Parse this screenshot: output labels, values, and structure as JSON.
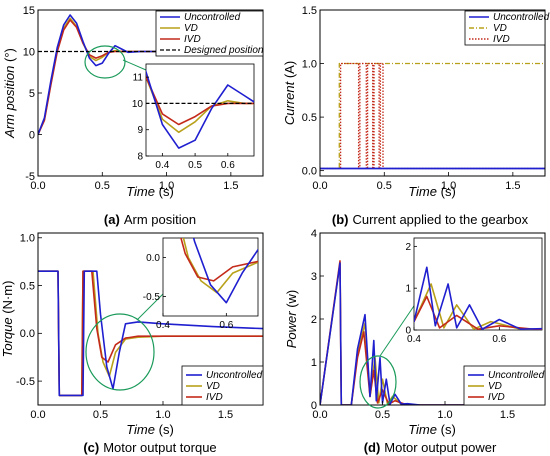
{
  "colors": {
    "uncontrolled": "#1f1fd0",
    "vd": "#b8a11a",
    "ivd": "#c42a1a",
    "designed": "#000000",
    "highlight": "#1a9a5a"
  },
  "captions": [
    {
      "label": "(a)",
      "text": "Arm position"
    },
    {
      "label": "(b)",
      "text": "Current applied to the gearbox"
    },
    {
      "label": "(c)",
      "text": "Motor output torque"
    },
    {
      "label": "(d)",
      "text": "Motor output power"
    }
  ],
  "chart_data": [
    {
      "type": "line",
      "xlabel": "Time (s)",
      "ylabel": "Arm position (°)",
      "xlim": [
        0,
        1.75
      ],
      "ylim": [
        -5,
        15
      ],
      "xticks": [
        "0.0",
        "0.5",
        "1.0",
        "1.5"
      ],
      "yticks": [
        "-5",
        "0",
        "5",
        "10",
        "15"
      ],
      "legend": "top-right",
      "series": [
        {
          "name": "Uncontrolled",
          "x": [
            0,
            0.05,
            0.1,
            0.15,
            0.2,
            0.25,
            0.3,
            0.35,
            0.4,
            0.45,
            0.5,
            0.55,
            0.6,
            0.65,
            0.7,
            0.8,
            1.0,
            1.5,
            1.75
          ],
          "y": [
            0,
            2,
            6.5,
            10.5,
            13.2,
            14.4,
            13.4,
            11.2,
            9.2,
            8.3,
            8.6,
            9.8,
            10.7,
            10.3,
            9.9,
            10.0,
            10.0,
            10.0,
            10.0
          ]
        },
        {
          "name": "VD",
          "x": [
            0,
            0.05,
            0.1,
            0.15,
            0.2,
            0.25,
            0.3,
            0.35,
            0.4,
            0.45,
            0.5,
            0.55,
            0.6,
            0.65,
            0.8,
            1.0,
            1.5,
            1.75
          ],
          "y": [
            0,
            1.8,
            6.2,
            10.2,
            12.8,
            14.0,
            13.0,
            11.0,
            9.4,
            8.9,
            9.3,
            9.9,
            10.1,
            10.0,
            10.0,
            10.0,
            10.0,
            10.0
          ]
        },
        {
          "name": "IVD",
          "x": [
            0,
            0.05,
            0.1,
            0.15,
            0.2,
            0.25,
            0.3,
            0.35,
            0.4,
            0.45,
            0.5,
            0.55,
            0.6,
            0.65,
            0.8,
            1.0,
            1.5,
            1.75
          ],
          "y": [
            0,
            1.7,
            6.0,
            10.0,
            12.6,
            13.8,
            12.9,
            11.0,
            9.6,
            9.2,
            9.5,
            9.9,
            10.0,
            10.0,
            10.0,
            10.0,
            10.0,
            10.0
          ]
        },
        {
          "name": "Designed position",
          "x": [
            0,
            1.75
          ],
          "y": [
            10,
            10
          ]
        }
      ],
      "inset": {
        "xlim": [
          0.35,
          0.68
        ],
        "ylim": [
          8,
          11.5
        ],
        "xticks": [
          "0.4",
          "0.5",
          "0.6"
        ],
        "yticks": [
          "8",
          "9",
          "10",
          "11"
        ]
      }
    },
    {
      "type": "line",
      "xlabel": "Time (s)",
      "ylabel": "Current (A)",
      "xlim": [
        0,
        1.75
      ],
      "ylim": [
        -0.05,
        1.5
      ],
      "xticks": [
        "0.0",
        "0.5",
        "1.0",
        "1.5"
      ],
      "yticks": [
        "0.0",
        "0.5",
        "1.0",
        "1.5"
      ],
      "legend": "top-right",
      "series": [
        {
          "name": "Uncontrolled",
          "x": [
            0,
            1.75
          ],
          "y": [
            0.02,
            0.02
          ]
        },
        {
          "name": "VD",
          "x": [
            0,
            0.15,
            0.15,
            1.75
          ],
          "y": [
            0.02,
            0.02,
            1.0,
            1.0
          ]
        },
        {
          "name": "IVD",
          "x": [
            0,
            0.16,
            0.16,
            0.3,
            0.3,
            0.31,
            0.31,
            0.36,
            0.36,
            0.37,
            0.37,
            0.41,
            0.41,
            0.42,
            0.42,
            0.46,
            0.46,
            0.47,
            0.47,
            0.49,
            0.49,
            1.75
          ],
          "y": [
            0.02,
            0.02,
            1.0,
            1.0,
            0.02,
            0.02,
            1.0,
            1.0,
            0.02,
            0.02,
            1.0,
            1.0,
            0.02,
            0.02,
            1.0,
            1.0,
            0.02,
            0.02,
            1.0,
            1.0,
            0.02,
            0.02
          ]
        }
      ]
    },
    {
      "type": "line",
      "xlabel": "Time (s)",
      "ylabel": "Torque (N·m)",
      "xlim": [
        0,
        1.8
      ],
      "ylim": [
        -0.75,
        1.05
      ],
      "xticks": [
        "0.0",
        "0.5",
        "1.0",
        "1.5"
      ],
      "yticks": [
        "-0.5",
        "0.0",
        "0.5",
        "1.0"
      ],
      "legend": "bottom-right",
      "series": [
        {
          "name": "Uncontrolled",
          "x": [
            0,
            0.16,
            0.17,
            0.36,
            0.37,
            0.47,
            0.5,
            0.55,
            0.6,
            0.65,
            0.7,
            0.8,
            1.0,
            1.4,
            1.8
          ],
          "y": [
            0.65,
            0.65,
            -0.65,
            -0.65,
            0.65,
            0.65,
            0.2,
            -0.35,
            -0.58,
            -0.2,
            0.1,
            0.12,
            0.1,
            0.07,
            0.05
          ]
        },
        {
          "name": "VD",
          "x": [
            0,
            0.16,
            0.17,
            0.35,
            0.36,
            0.44,
            0.48,
            0.52,
            0.57,
            0.62,
            0.7,
            0.8,
            1.0,
            1.8
          ],
          "y": [
            0.65,
            0.65,
            -0.65,
            -0.65,
            0.65,
            0.65,
            0.0,
            -0.3,
            -0.45,
            -0.2,
            -0.06,
            -0.04,
            -0.03,
            -0.03
          ]
        },
        {
          "name": "IVD",
          "x": [
            0,
            0.16,
            0.17,
            0.35,
            0.36,
            0.43,
            0.47,
            0.51,
            0.56,
            0.62,
            0.7,
            0.8,
            1.0,
            1.8
          ],
          "y": [
            0.65,
            0.65,
            -0.65,
            -0.65,
            0.65,
            0.65,
            0.05,
            -0.25,
            -0.3,
            -0.12,
            -0.05,
            -0.03,
            -0.03,
            -0.03
          ]
        }
      ],
      "inset": {
        "xlim": [
          0.4,
          0.7
        ],
        "ylim": [
          -0.75,
          0.25
        ],
        "xticks": [
          "0.4",
          "0.6"
        ],
        "yticks": [
          "-0.5",
          "0.0"
        ]
      }
    },
    {
      "type": "line",
      "xlabel": "Time (s)",
      "ylabel": "Power (w)",
      "xlim": [
        0,
        1.8
      ],
      "ylim": [
        0,
        4
      ],
      "xticks": [
        "0.0",
        "0.5",
        "1.0",
        "1.5"
      ],
      "yticks": [
        "0",
        "1",
        "2",
        "3",
        "4"
      ],
      "legend": "bottom-right",
      "series": [
        {
          "name": "Uncontrolled",
          "x": [
            0,
            0.16,
            0.17,
            0.25,
            0.3,
            0.36,
            0.4,
            0.43,
            0.45,
            0.48,
            0.5,
            0.53,
            0.56,
            0.6,
            0.65,
            0.7,
            0.8,
            1.8
          ],
          "y": [
            0,
            3.3,
            0,
            0,
            1.3,
            2.1,
            0.2,
            1.5,
            0.1,
            1.1,
            0.05,
            0.6,
            0.02,
            0.25,
            0.02,
            0.03,
            0,
            0
          ]
        },
        {
          "name": "VD",
          "x": [
            0,
            0.16,
            0.17,
            0.25,
            0.3,
            0.36,
            0.4,
            0.44,
            0.47,
            0.5,
            0.54,
            0.58,
            0.65,
            0.8,
            1.8
          ],
          "y": [
            0,
            3.3,
            0,
            0,
            1.2,
            1.9,
            0.2,
            1.1,
            0.05,
            0.6,
            0.02,
            0.2,
            0.02,
            0,
            0
          ]
        },
        {
          "name": "IVD",
          "x": [
            0,
            0.16,
            0.17,
            0.25,
            0.3,
            0.35,
            0.4,
            0.43,
            0.46,
            0.5,
            0.55,
            0.6,
            0.7,
            1.8
          ],
          "y": [
            0,
            3.35,
            0,
            0,
            1.1,
            1.7,
            0.2,
            0.8,
            0.05,
            0.35,
            0.02,
            0.1,
            0,
            0
          ]
        }
      ],
      "inset": {
        "xlim": [
          0.4,
          0.7
        ],
        "ylim": [
          0,
          2.2
        ],
        "xticks": [
          "0.4",
          "0.6"
        ],
        "yticks": [
          "0",
          "1",
          "2"
        ]
      }
    }
  ]
}
